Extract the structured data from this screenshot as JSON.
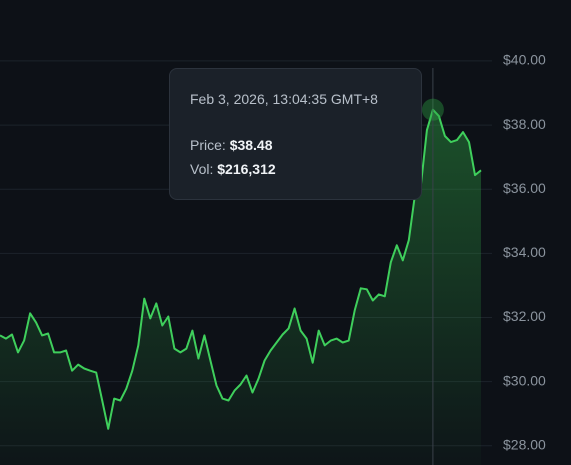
{
  "chart_data": {
    "type": "area",
    "color": "#3fcf5c",
    "values": [
      31.44,
      31.34,
      31.47,
      30.91,
      31.28,
      32.13,
      31.84,
      31.44,
      31.5,
      30.91,
      30.91,
      30.97,
      30.34,
      30.53,
      30.41,
      30.34,
      30.28,
      29.41,
      28.53,
      29.47,
      29.41,
      29.78,
      30.34,
      31.13,
      32.59,
      31.97,
      32.44,
      31.75,
      32.03,
      31.03,
      30.91,
      31.03,
      31.59,
      30.72,
      31.44,
      30.66,
      29.88,
      29.47,
      29.41,
      29.72,
      29.91,
      30.19,
      29.66,
      30.09,
      30.66,
      30.97,
      31.22,
      31.47,
      31.66,
      32.28,
      31.59,
      31.34,
      30.59,
      31.59,
      31.13,
      31.28,
      31.34,
      31.22,
      31.28,
      32.22,
      32.91,
      32.88,
      32.53,
      32.72,
      32.66,
      33.72,
      34.25,
      33.78,
      34.41,
      35.81,
      36.13,
      37.84,
      38.48,
      38.28,
      37.66,
      37.47,
      37.53,
      37.78,
      37.47,
      36.44,
      36.59
    ],
    "ylim": [
      27.4,
      41.9
    ],
    "yticks": [
      {
        "value": 28,
        "label": "$28.00"
      },
      {
        "value": 30,
        "label": "$30.00"
      },
      {
        "value": 32,
        "label": "$32.00"
      },
      {
        "value": 34,
        "label": "$34.00"
      },
      {
        "value": 36,
        "label": "$36.00"
      },
      {
        "value": 38,
        "label": "$38.00"
      },
      {
        "value": 40,
        "label": "$40.00"
      }
    ],
    "grid": true,
    "tooltip": {
      "date": "Feb 3, 2026, 13:04:35 GMT+8",
      "price_name": "Price:",
      "price": 38.48,
      "price_label": "$38.48",
      "vol_name": "Vol:",
      "vol": "$216,312"
    }
  }
}
